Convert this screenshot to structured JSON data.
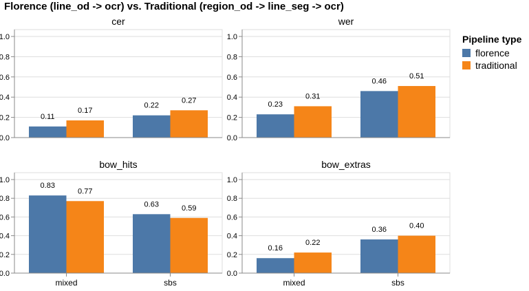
{
  "title": "Florence (line_od -> ocr) vs. Traditional (region_od -> line_seg -> ocr)",
  "legend": {
    "title": "Pipeline type",
    "items": [
      {
        "label": "florence",
        "color": "#4c78a8"
      },
      {
        "label": "traditional",
        "color": "#f58518"
      }
    ]
  },
  "chart_data": {
    "type": "bar",
    "categories": [
      "mixed",
      "sbs"
    ],
    "series_names": [
      "florence",
      "traditional"
    ],
    "colors": [
      "#4c78a8",
      "#f58518"
    ],
    "ylim": [
      0,
      1.0
    ],
    "yticks": [
      "0.0",
      "0.2",
      "0.4",
      "0.6",
      "0.8",
      "1.0"
    ],
    "grid": true,
    "legend_position": "right",
    "facets": [
      {
        "title": "cer",
        "values": [
          [
            0.11,
            0.17
          ],
          [
            0.22,
            0.27
          ]
        ],
        "labels": [
          [
            "0.11",
            "0.17"
          ],
          [
            "0.22",
            "0.27"
          ]
        ]
      },
      {
        "title": "wer",
        "values": [
          [
            0.23,
            0.31
          ],
          [
            0.46,
            0.51
          ]
        ],
        "labels": [
          [
            "0.23",
            "0.31"
          ],
          [
            "0.46",
            "0.51"
          ]
        ]
      },
      {
        "title": "bow_hits",
        "values": [
          [
            0.83,
            0.77
          ],
          [
            0.63,
            0.59
          ]
        ],
        "labels": [
          [
            "0.83",
            "0.77"
          ],
          [
            "0.63",
            "0.59"
          ]
        ]
      },
      {
        "title": "bow_extras",
        "values": [
          [
            0.16,
            0.22
          ],
          [
            0.36,
            0.4
          ]
        ],
        "labels": [
          [
            "0.16",
            "0.22"
          ],
          [
            "0.36",
            "0.40"
          ]
        ]
      }
    ]
  }
}
